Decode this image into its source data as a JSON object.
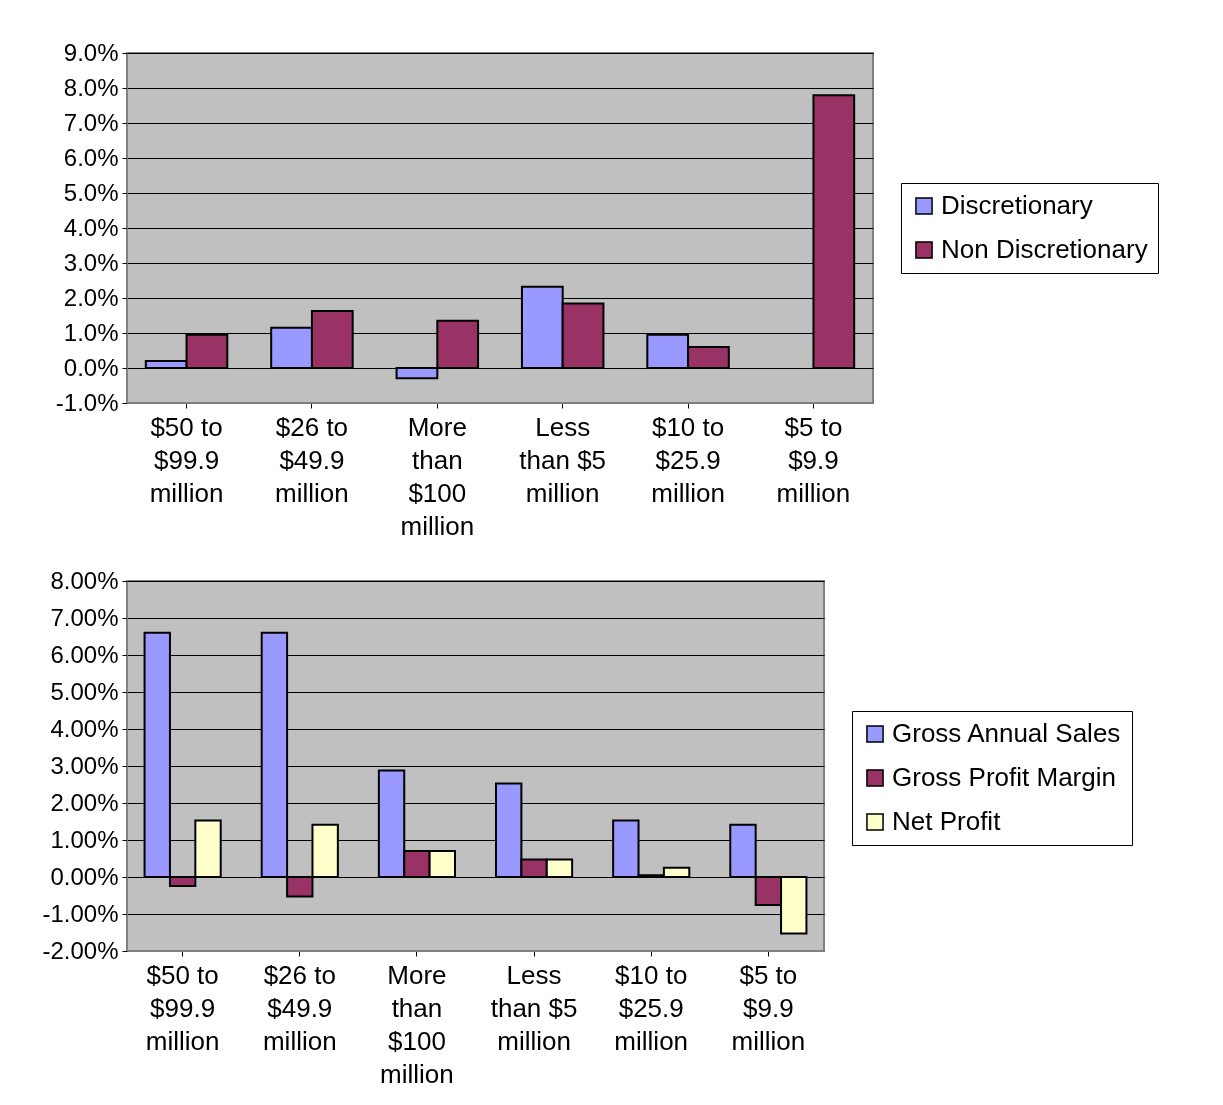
{
  "chart_data": [
    {
      "type": "bar",
      "categories": [
        "$50 to $99.9 million",
        "$26 to $49.9 million",
        "More than $100 million",
        "Less than $5 million",
        "$10 to $25.9 million",
        "$5 to $9.9 million"
      ],
      "series": [
        {
          "name": "Discretionary",
          "color": "#9999ff",
          "values": [
            0.2,
            1.15,
            -0.29,
            2.32,
            0.95,
            null
          ]
        },
        {
          "name": "Non Discretionary",
          "color": "#993366",
          "values": [
            0.95,
            1.63,
            1.35,
            1.84,
            0.6,
            7.79
          ]
        }
      ],
      "ylim": [
        -1,
        9
      ],
      "yticks": [
        {
          "value": -1,
          "label": "-1.0%"
        },
        {
          "value": 0,
          "label": "0.0%"
        },
        {
          "value": 1,
          "label": "1.0%"
        },
        {
          "value": 2,
          "label": "2.0%"
        },
        {
          "value": 3,
          "label": "3.0%"
        },
        {
          "value": 4,
          "label": "4.0%"
        },
        {
          "value": 5,
          "label": "5.0%"
        },
        {
          "value": 6,
          "label": "6.0%"
        },
        {
          "value": 7,
          "label": "7.0%"
        },
        {
          "value": 8,
          "label": "8.0%"
        },
        {
          "value": 9,
          "label": "9.0%"
        }
      ],
      "grid": "y",
      "legend": "right"
    },
    {
      "type": "bar",
      "categories": [
        "$50 to $99.9 million",
        "$26 to $49.9 million",
        "More than $100 million",
        "Less than $5 million",
        "$10 to $25.9 million",
        "$5 to $9.9 million"
      ],
      "series": [
        {
          "name": "Gross Annual Sales",
          "color": "#9999ff",
          "values": [
            6.6,
            6.6,
            2.88,
            2.53,
            1.53,
            1.41
          ]
        },
        {
          "name": "Gross Profit Margin",
          "color": "#993366",
          "values": [
            -0.24,
            -0.53,
            0.7,
            0.47,
            0.05,
            -0.76
          ]
        },
        {
          "name": "Net Profit",
          "color": "#ffffcc",
          "values": [
            1.53,
            1.41,
            0.7,
            0.47,
            0.25,
            -1.53
          ]
        }
      ],
      "ylim": [
        -2,
        8
      ],
      "yticks": [
        {
          "value": -2,
          "label": "-2.00%"
        },
        {
          "value": -1,
          "label": "-1.00%"
        },
        {
          "value": 0,
          "label": "0.00%"
        },
        {
          "value": 1,
          "label": "1.00%"
        },
        {
          "value": 2,
          "label": "2.00%"
        },
        {
          "value": 3,
          "label": "3.00%"
        },
        {
          "value": 4,
          "label": "4.00%"
        },
        {
          "value": 5,
          "label": "5.00%"
        },
        {
          "value": 6,
          "label": "6.00%"
        },
        {
          "value": 7,
          "label": "7.00%"
        },
        {
          "value": 8,
          "label": "8.00%"
        }
      ],
      "grid": "y",
      "legend": "right"
    }
  ]
}
